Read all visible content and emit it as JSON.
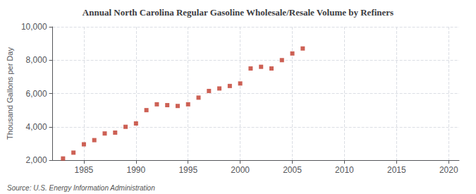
{
  "chart_data": {
    "type": "scatter",
    "title": "Annual North Carolina Regular Gasoline Wholesale/Resale Volume by Refiners",
    "ylabel": "Thousand Gallons per Day",
    "annotations": [
      "Source: U.S. Energy Information Administration"
    ],
    "x": [
      1983,
      1984,
      1985,
      1986,
      1987,
      1988,
      1989,
      1990,
      1991,
      1992,
      1993,
      1994,
      1995,
      1996,
      1997,
      1998,
      1999,
      2000,
      2001,
      2002,
      2003,
      2004,
      2005,
      2006
    ],
    "values": [
      2100,
      2450,
      2950,
      3200,
      3600,
      3650,
      4000,
      4200,
      5000,
      5350,
      5300,
      5250,
      5350,
      5750,
      6150,
      6300,
      6450,
      6600,
      7500,
      7600,
      7500,
      8000,
      8400,
      8700
    ],
    "color": "#c0392b",
    "marker": "square",
    "xlim": [
      1982,
      2021
    ],
    "xticks": [
      1985,
      1990,
      1995,
      2000,
      2005,
      2010,
      2015,
      2020
    ],
    "ylim": [
      2000,
      10000
    ],
    "yticks": [
      {
        "value": 2000,
        "label": "2,000"
      },
      {
        "value": 4000,
        "label": "4,000"
      },
      {
        "value": 6000,
        "label": "6,000"
      },
      {
        "value": 8000,
        "label": "8,000"
      },
      {
        "value": 10000,
        "label": "10,000"
      }
    ],
    "grid": true
  }
}
